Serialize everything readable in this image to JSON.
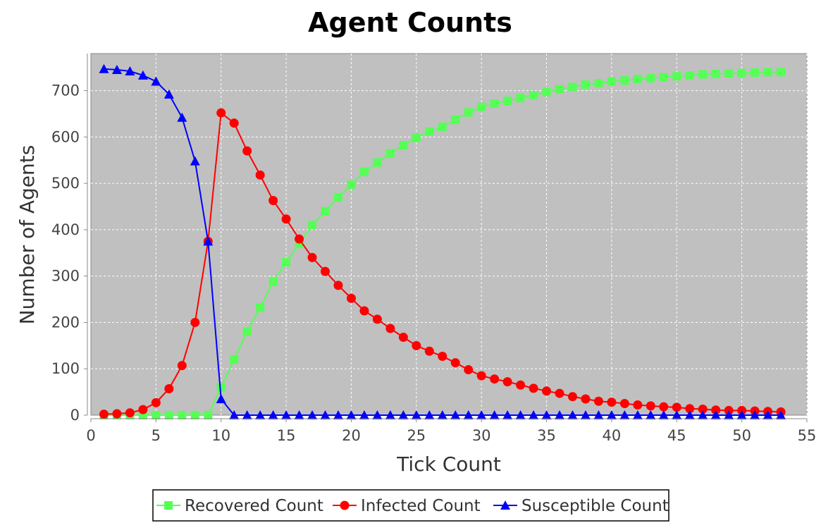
{
  "chart_data": {
    "type": "line",
    "title": "Agent Counts",
    "xlabel": "Tick Count",
    "ylabel": "Number of Agents",
    "xlim": [
      0,
      55
    ],
    "ylim": [
      0,
      780
    ],
    "xticks": [
      0,
      5,
      10,
      15,
      20,
      25,
      30,
      35,
      40,
      45,
      50,
      55
    ],
    "yticks": [
      0,
      100,
      200,
      300,
      400,
      500,
      600,
      700
    ],
    "grid": true,
    "plot_background": "#c0c0c0",
    "legend_position": "bottom",
    "x": [
      1,
      2,
      3,
      4,
      5,
      6,
      7,
      8,
      9,
      10,
      11,
      12,
      13,
      14,
      15,
      16,
      17,
      18,
      19,
      20,
      21,
      22,
      23,
      24,
      25,
      26,
      27,
      28,
      29,
      30,
      31,
      32,
      33,
      34,
      35,
      36,
      37,
      38,
      39,
      40,
      41,
      42,
      43,
      44,
      45,
      46,
      47,
      48,
      49,
      50,
      51,
      52,
      53
    ],
    "series": [
      {
        "name": "Recovered Count",
        "color": "#55ff55",
        "marker": "square",
        "values": [
          0,
          0,
          0,
          0,
          0,
          0,
          0,
          0,
          0,
          60,
          120,
          180,
          232,
          288,
          330,
          370,
          410,
          440,
          470,
          497,
          525,
          545,
          565,
          582,
          598,
          612,
          622,
          637,
          653,
          665,
          672,
          678,
          684,
          690,
          697,
          703,
          708,
          713,
          716,
          720,
          722,
          725,
          727,
          729,
          731,
          733,
          735,
          736,
          737,
          738,
          739,
          740,
          740
        ]
      },
      {
        "name": "Infected Count",
        "color": "#ff0000",
        "marker": "circle",
        "values": [
          2,
          3,
          5,
          12,
          27,
          57,
          107,
          200,
          375,
          652,
          630,
          570,
          518,
          463,
          423,
          380,
          340,
          310,
          280,
          252,
          225,
          207,
          187,
          168,
          150,
          138,
          127,
          113,
          98,
          85,
          78,
          72,
          65,
          58,
          52,
          47,
          40,
          35,
          30,
          28,
          25,
          22,
          20,
          18,
          17,
          14,
          13,
          11,
          10,
          10,
          9,
          8,
          7
        ]
      },
      {
        "name": "Susceptible Count",
        "color": "#0000ff",
        "marker": "triangle",
        "values": [
          747,
          745,
          742,
          733,
          720,
          692,
          642,
          548,
          375,
          35,
          0,
          0,
          0,
          0,
          0,
          0,
          0,
          0,
          0,
          0,
          0,
          0,
          0,
          0,
          0,
          0,
          0,
          0,
          0,
          0,
          0,
          0,
          0,
          0,
          0,
          0,
          0,
          0,
          0,
          0,
          0,
          0,
          0,
          0,
          0,
          0,
          0,
          0,
          0,
          0,
          0,
          0,
          0
        ]
      }
    ]
  }
}
